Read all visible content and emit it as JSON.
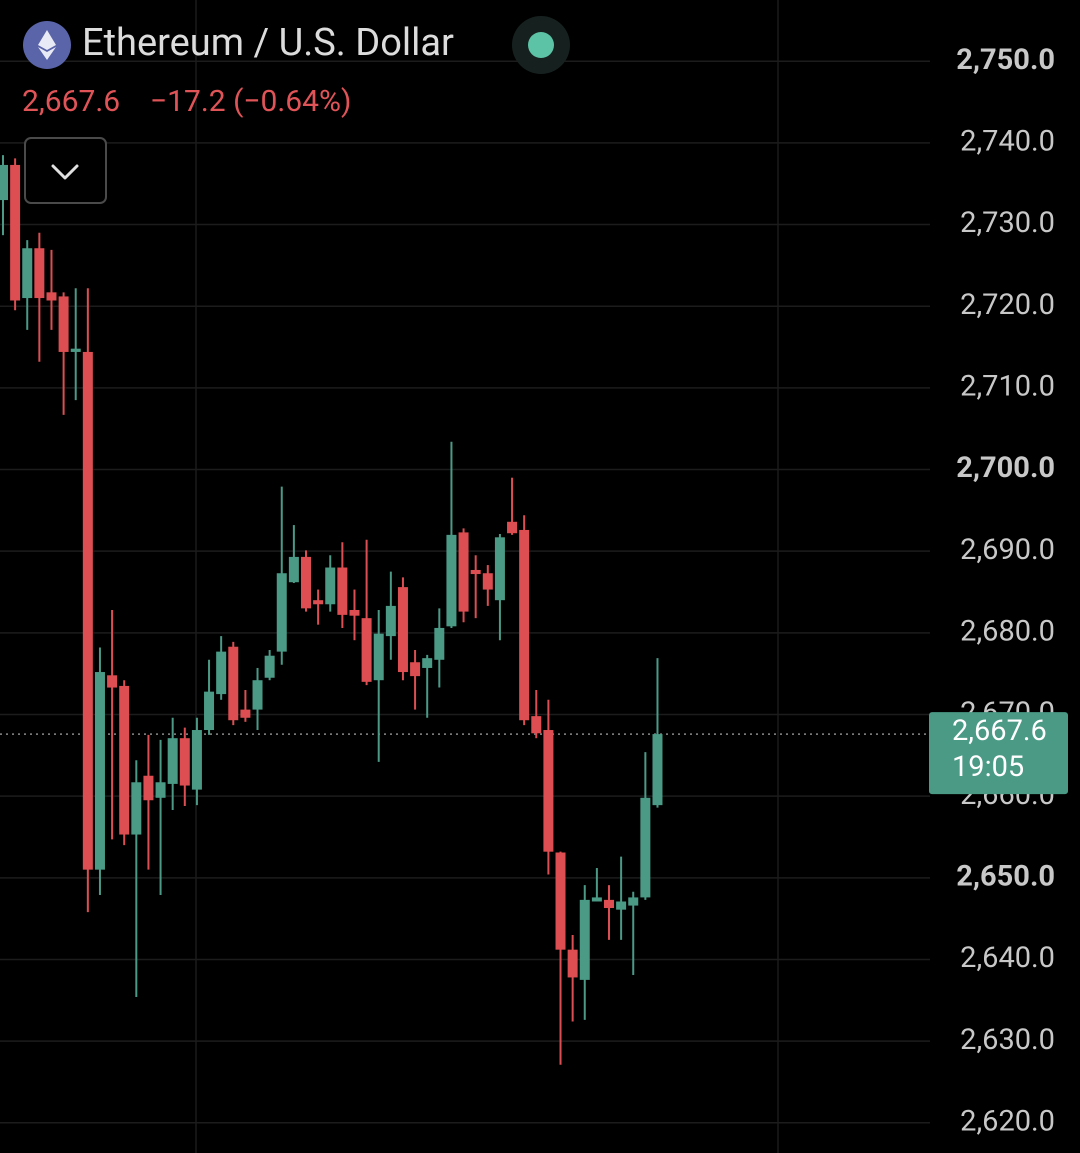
{
  "header": {
    "title": "Ethereum / U.S. Dollar",
    "price": "2,667.6",
    "change": "−17.2 (−0.64%)"
  },
  "chart_data": {
    "type": "candlestick",
    "up_color": "#4a9a86",
    "down_color": "#dc4e51",
    "open": [
      2733.0,
      2737.3,
      2721.0,
      2727.1,
      2721.7,
      2721.2,
      2714.4,
      2714.4,
      2651.0,
      2674.8,
      2673.5,
      2655.3,
      2662.5,
      2659.8,
      2661.5,
      2667.1,
      2660.8,
      2668.1,
      2672.5,
      2678.3,
      2670.6,
      2670.6,
      2674.5,
      2677.7,
      2686.2,
      2689.3,
      2684.0,
      2683.5,
      2688.0,
      2682.8,
      2681.8,
      2674.2,
      2679.6,
      2685.6,
      2676.4,
      2675.7,
      2676.7,
      2680.8,
      2692.3,
      2687.7,
      2687.3,
      2684.0,
      2693.6,
      2692.6,
      2669.8,
      2668.1,
      2653.1,
      2641.2,
      2637.5,
      2647.1,
      2647.3,
      2646.1,
      2646.6,
      2647.6,
      2658.9
    ],
    "high": [
      2738.5,
      2738.1,
      2728.1,
      2729.0,
      2726.9,
      2721.7,
      2722.2,
      2722.2,
      2678.2,
      2682.8,
      2674.2,
      2664.4,
      2667.5,
      2666.9,
      2669.6,
      2668.4,
      2669.6,
      2676.7,
      2679.6,
      2678.9,
      2673.0,
      2675.7,
      2677.9,
      2697.9,
      2693.2,
      2690.1,
      2685.3,
      2689.5,
      2691.1,
      2685.3,
      2691.4,
      2682.8,
      2687.5,
      2686.8,
      2677.9,
      2677.3,
      2683.0,
      2703.4,
      2692.8,
      2689.5,
      2688.3,
      2692.1,
      2699.0,
      2694.4,
      2673.0,
      2671.8,
      2653.2,
      2643.0,
      2649.1,
      2651.2,
      2649.1,
      2652.6,
      2648.3,
      2665.4,
      2676.9
    ],
    "low": [
      2728.7,
      2719.5,
      2717.1,
      2713.2,
      2717.1,
      2706.7,
      2708.5,
      2645.8,
      2647.9,
      2654.7,
      2654.0,
      2635.4,
      2651.0,
      2647.9,
      2658.3,
      2658.8,
      2658.9,
      2667.5,
      2671.8,
      2668.7,
      2669.1,
      2668.1,
      2674.2,
      2676.1,
      2686.1,
      2682.6,
      2681.0,
      2682.6,
      2680.6,
      2679.1,
      2673.6,
      2664.2,
      2676.7,
      2674.2,
      2670.6,
      2669.6,
      2673.3,
      2680.6,
      2681.3,
      2681.8,
      2683.3,
      2679.1,
      2692.0,
      2668.7,
      2667.1,
      2650.4,
      2627.1,
      2632.4,
      2632.6,
      2647.1,
      2642.4,
      2642.4,
      2638.1,
      2647.3,
      2658.6
    ],
    "close": [
      2737.3,
      2720.7,
      2727.1,
      2721.0,
      2720.7,
      2714.4,
      2714.8,
      2651.0,
      2675.2,
      2673.3,
      2655.3,
      2661.7,
      2659.5,
      2661.7,
      2667.1,
      2661.3,
      2668.1,
      2672.8,
      2677.7,
      2669.3,
      2669.6,
      2674.2,
      2677.2,
      2687.3,
      2689.3,
      2683.0,
      2683.5,
      2688.0,
      2682.2,
      2682.1,
      2674.0,
      2679.9,
      2683.3,
      2675.2,
      2674.7,
      2676.9,
      2680.6,
      2692.0,
      2682.6,
      2687.2,
      2685.3,
      2691.7,
      2692.2,
      2669.3,
      2667.7,
      2653.2,
      2641.2,
      2637.8,
      2647.3,
      2647.6,
      2646.3,
      2647.1,
      2647.6,
      2659.8,
      2667.6
    ],
    "ylim": [
      2616.3,
      2757.5
    ],
    "yticks": [
      {
        "value": 2750,
        "label": "2,750.0",
        "bold": true
      },
      {
        "value": 2740,
        "label": "2,740.0"
      },
      {
        "value": 2730,
        "label": "2,730.0"
      },
      {
        "value": 2720,
        "label": "2,720.0"
      },
      {
        "value": 2710,
        "label": "2,710.0"
      },
      {
        "value": 2700,
        "label": "2,700.0",
        "bold": true
      },
      {
        "value": 2690,
        "label": "2,690.0"
      },
      {
        "value": 2680,
        "label": "2,680.0"
      },
      {
        "value": 2670,
        "label": "2,670.0"
      },
      {
        "value": 2660,
        "label": "2,660.0"
      },
      {
        "value": 2650,
        "label": "2,650.0",
        "bold": true
      },
      {
        "value": 2640,
        "label": "2,640.0"
      },
      {
        "value": 2630,
        "label": "2,630.0"
      },
      {
        "value": 2620,
        "label": "2,620.0"
      }
    ],
    "grid": true,
    "last_price": {
      "value": 2667.6,
      "label": "2,667.6"
    },
    "countdown": "19:05"
  }
}
